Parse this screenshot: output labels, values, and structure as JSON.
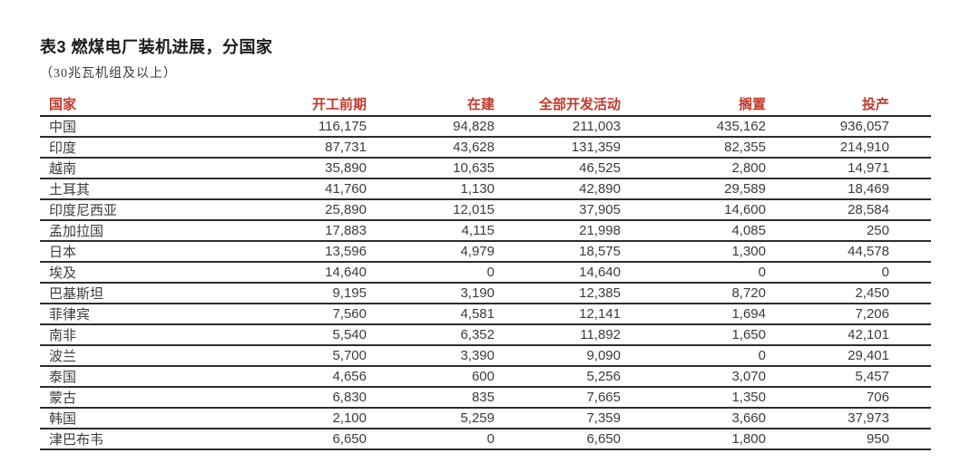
{
  "title": "表3 燃煤电厂装机进展，分国家",
  "subtitle": "（30兆瓦机组及以上）",
  "colors": {
    "header_red": "#c0392b",
    "rule_line": "#2d2d2d",
    "body_text": "#3c3c3c",
    "background": "#ffffff"
  },
  "chart_data": {
    "type": "table",
    "title": "表3 燃煤电厂装机进展，分国家",
    "subtitle": "（30兆瓦机组及以上）",
    "unit_note": "兆瓦 (MW)",
    "columns": [
      "国家",
      "开工前期",
      "在建",
      "全部开发活动",
      "搁置",
      "投产"
    ],
    "rows": [
      [
        "中国",
        "116,175",
        "94,828",
        "211,003",
        "435,162",
        "936,057"
      ],
      [
        "印度",
        "87,731",
        "43,628",
        "131,359",
        "82,355",
        "214,910"
      ],
      [
        "越南",
        "35,890",
        "10,635",
        "46,525",
        "2,800",
        "14,971"
      ],
      [
        "土耳其",
        "41,760",
        "1,130",
        "42,890",
        "29,589",
        "18,469"
      ],
      [
        "印度尼西亚",
        "25,890",
        "12,015",
        "37,905",
        "14,600",
        "28,584"
      ],
      [
        "孟加拉国",
        "17,883",
        "4,115",
        "21,998",
        "4,085",
        "250"
      ],
      [
        "日本",
        "13,596",
        "4,979",
        "18,575",
        "1,300",
        "44,578"
      ],
      [
        "埃及",
        "14,640",
        "0",
        "14,640",
        "0",
        "0"
      ],
      [
        "巴基斯坦",
        "9,195",
        "3,190",
        "12,385",
        "8,720",
        "2,450"
      ],
      [
        "菲律宾",
        "7,560",
        "4,581",
        "12,141",
        "1,694",
        "7,206"
      ],
      [
        "南非",
        "5,540",
        "6,352",
        "11,892",
        "1,650",
        "42,101"
      ],
      [
        "波兰",
        "5,700",
        "3,390",
        "9,090",
        "0",
        "29,401"
      ],
      [
        "泰国",
        "4,656",
        "600",
        "5,256",
        "3,070",
        "5,457"
      ],
      [
        "蒙古",
        "6,830",
        "835",
        "7,665",
        "1,350",
        "706"
      ],
      [
        "韩国",
        "2,100",
        "5,259",
        "7,359",
        "3,660",
        "37,973"
      ],
      [
        "津巴布韦",
        "6,650",
        "0",
        "6,650",
        "1,800",
        "950"
      ]
    ]
  }
}
